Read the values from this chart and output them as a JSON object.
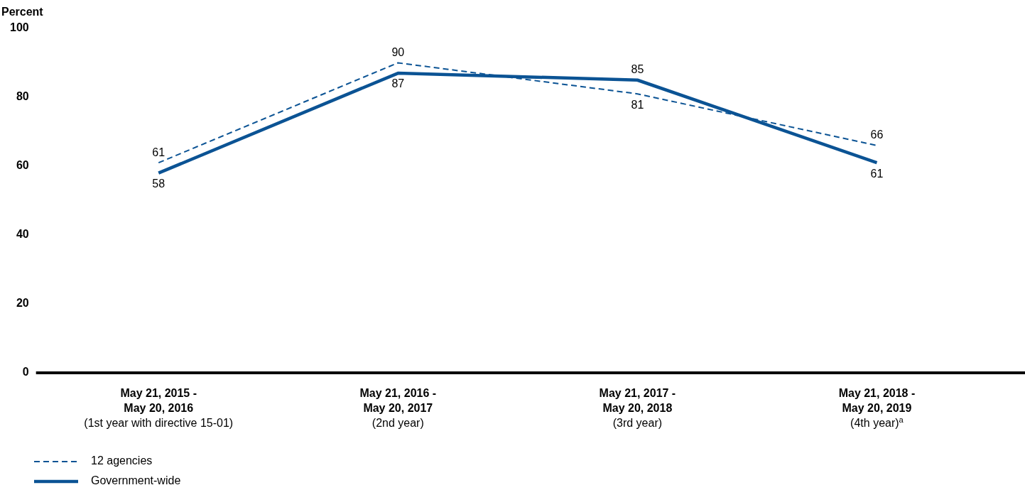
{
  "chart_data": {
    "type": "line",
    "ylabel": "Percent",
    "categories": [
      "May 21, 2015 -\nMay 20, 2016\n(1st year with directive 15-01)",
      "May 21, 2016 -\nMay 20, 2017\n(2nd year)",
      "May 21, 2017 -\nMay 20, 2018\n(3rd year)",
      "May 21, 2018 -\nMay 20, 2019\n(4th year)$^{a}$"
    ],
    "series": [
      {
        "name": "12 agencies",
        "color": "#0b5394",
        "values": [
          61,
          90,
          81,
          66
        ],
        "line_style": "dashed"
      },
      {
        "name": "Government-wide",
        "color": "#0b5394",
        "values": [
          58,
          87,
          85,
          61
        ],
        "line_style": "solid"
      }
    ],
    "ylim": [
      0,
      100
    ],
    "yticks": [
      0,
      20,
      40,
      60,
      80,
      100
    ],
    "grid": false,
    "legend": "bottom left",
    "data_labels": true,
    "marker": "none"
  }
}
